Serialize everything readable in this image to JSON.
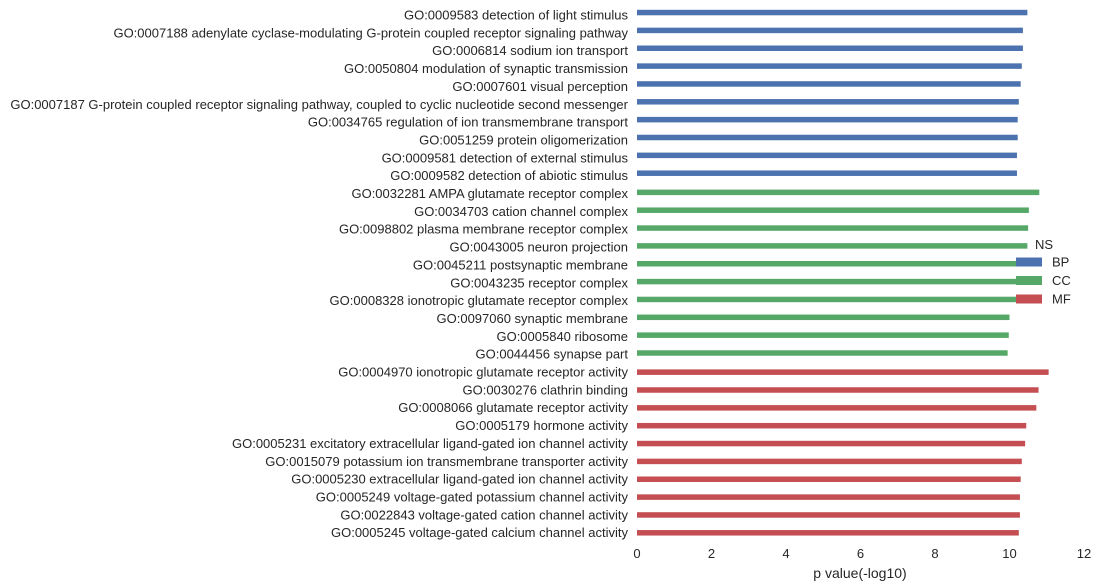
{
  "chart_data": {
    "type": "bar",
    "orientation": "horizontal",
    "xlabel": "p value(-log10)",
    "xlim": [
      0,
      12
    ],
    "xticks": [
      0,
      2,
      4,
      6,
      8,
      10,
      12
    ],
    "grid": false,
    "legend": {
      "placement": "center-right",
      "title": "NS",
      "entries": [
        "BP",
        "CC",
        "MF"
      ]
    },
    "colors": {
      "BP": "#4c72b0",
      "CC": "#55a868",
      "MF": "#c44e52"
    },
    "categories": [
      {
        "label": "GO:0009583 detection of light stimulus",
        "group": "BP",
        "value": 10.48
      },
      {
        "label": "GO:0007188 adenylate cyclase-modulating G-protein coupled receptor signaling pathway",
        "group": "BP",
        "value": 10.36
      },
      {
        "label": "GO:0006814 sodium ion transport",
        "group": "BP",
        "value": 10.36
      },
      {
        "label": "GO:0050804 modulation of synaptic transmission",
        "group": "BP",
        "value": 10.33
      },
      {
        "label": "GO:0007601 visual perception",
        "group": "BP",
        "value": 10.3
      },
      {
        "label": "GO:0007187 G-protein coupled receptor signaling pathway, coupled to cyclic nucleotide second messenger",
        "group": "BP",
        "value": 10.25
      },
      {
        "label": "GO:0034765 regulation of ion transmembrane transport",
        "group": "BP",
        "value": 10.22
      },
      {
        "label": "GO:0051259 protein oligomerization",
        "group": "BP",
        "value": 10.22
      },
      {
        "label": "GO:0009581 detection of external stimulus",
        "group": "BP",
        "value": 10.2
      },
      {
        "label": "GO:0009582 detection of abiotic stimulus",
        "group": "BP",
        "value": 10.2
      },
      {
        "label": "GO:0032281 AMPA glutamate receptor complex",
        "group": "CC",
        "value": 10.8
      },
      {
        "label": "GO:0034703 cation channel complex",
        "group": "CC",
        "value": 10.52
      },
      {
        "label": "GO:0098802 plasma membrane receptor complex",
        "group": "CC",
        "value": 10.5
      },
      {
        "label": "GO:0043005 neuron projection",
        "group": "CC",
        "value": 10.48
      },
      {
        "label": "GO:0045211 postsynaptic membrane",
        "group": "CC",
        "value": 10.25
      },
      {
        "label": "GO:0043235 receptor complex",
        "group": "CC",
        "value": 10.22
      },
      {
        "label": "GO:0008328 ionotropic glutamate receptor complex",
        "group": "CC",
        "value": 10.2
      },
      {
        "label": "GO:0097060 synaptic membrane",
        "group": "CC",
        "value": 10.0
      },
      {
        "label": "GO:0005840 ribosome",
        "group": "CC",
        "value": 9.98
      },
      {
        "label": "GO:0044456 synapse part",
        "group": "CC",
        "value": 9.95
      },
      {
        "label": "GO:0004970 ionotropic glutamate receptor activity",
        "group": "MF",
        "value": 11.05
      },
      {
        "label": "GO:0030276 clathrin binding",
        "group": "MF",
        "value": 10.78
      },
      {
        "label": "GO:0008066 glutamate receptor activity",
        "group": "MF",
        "value": 10.72
      },
      {
        "label": "GO:0005179 hormone activity",
        "group": "MF",
        "value": 10.45
      },
      {
        "label": "GO:0005231 excitatory extracellular ligand-gated ion channel activity",
        "group": "MF",
        "value": 10.42
      },
      {
        "label": "GO:0015079 potassium ion transmembrane transporter activity",
        "group": "MF",
        "value": 10.33
      },
      {
        "label": "GO:0005230 extracellular ligand-gated ion channel activity",
        "group": "MF",
        "value": 10.3
      },
      {
        "label": "GO:0005249 voltage-gated potassium channel activity",
        "group": "MF",
        "value": 10.28
      },
      {
        "label": "GO:0022843 voltage-gated cation channel activity",
        "group": "MF",
        "value": 10.28
      },
      {
        "label": "GO:0005245 voltage-gated calcium channel activity",
        "group": "MF",
        "value": 10.25
      }
    ]
  }
}
